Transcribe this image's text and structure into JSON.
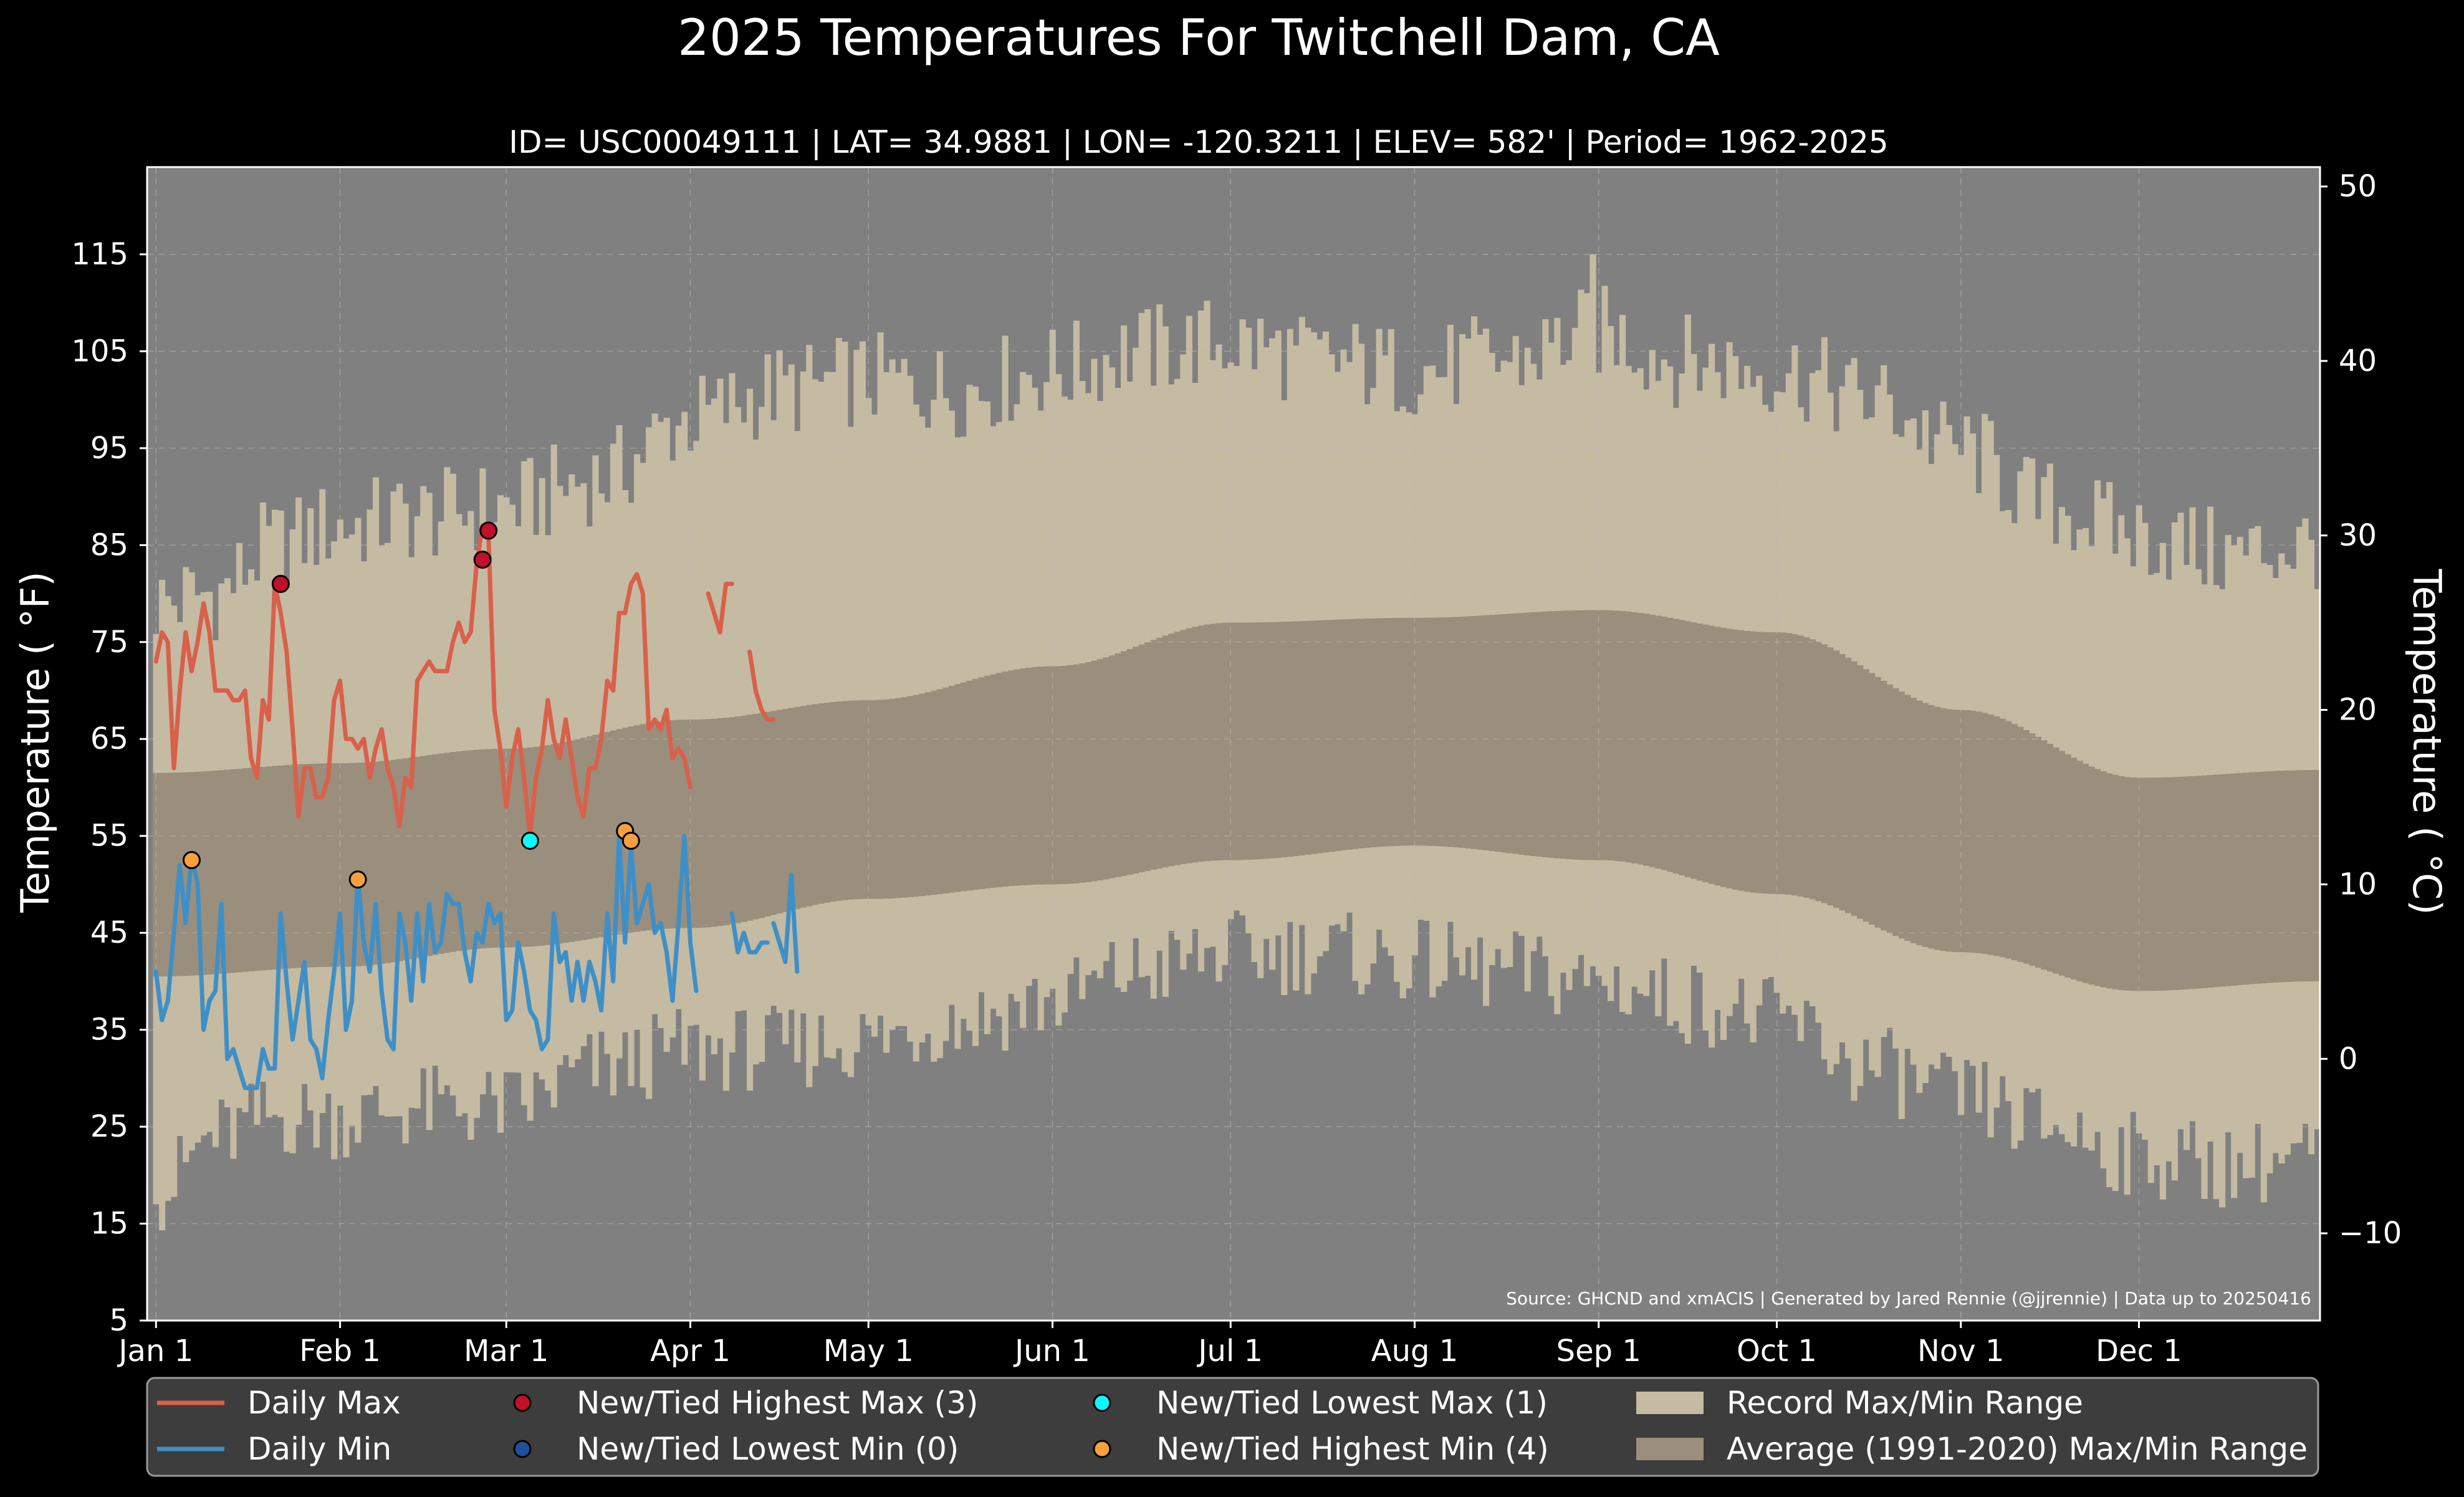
{
  "chart_data": {
    "type": "line",
    "title": "2025 Temperatures For Twitchell Dam, CA",
    "subtitle": "ID= USC00049111 | LAT= 34.9881 | LON= -120.3211 | ELEV= 582' | Period= 1962-2025",
    "ylabel_left": "Temperature ($^\\circ$F)",
    "ylabel_left_text": "Temperature ( °F)",
    "ylabel_right_text": "Temperature ( °C)",
    "source": "Source: GHCND and xmACIS | Generated by Jared Rennie (@jjrennie) | Data up to 20250416",
    "xlim_day": [
      -1.5,
      364.5
    ],
    "ylim_f": [
      5,
      124
    ],
    "grid": true,
    "legend_placement": "bottom",
    "x_ticks": [
      {
        "label": "Jan 1",
        "day": 0
      },
      {
        "label": "Feb 1",
        "day": 31
      },
      {
        "label": "Mar 1",
        "day": 59
      },
      {
        "label": "Apr 1",
        "day": 90
      },
      {
        "label": "May 1",
        "day": 120
      },
      {
        "label": "Jun 1",
        "day": 151
      },
      {
        "label": "Jul 1",
        "day": 181
      },
      {
        "label": "Aug 1",
        "day": 212
      },
      {
        "label": "Sep 1",
        "day": 243
      },
      {
        "label": "Oct 1",
        "day": 273
      },
      {
        "label": "Nov 1",
        "day": 304
      },
      {
        "label": "Dec 1",
        "day": 334
      }
    ],
    "y_ticks_f": [
      5,
      15,
      25,
      35,
      45,
      55,
      65,
      75,
      85,
      95,
      105,
      115
    ],
    "y_ticks_c": [
      -10,
      0,
      10,
      20,
      30,
      40,
      50
    ],
    "colors": {
      "background": "#000000",
      "plot_bg": "#808080",
      "record_range": "#c4bba2",
      "average_range": "#9a8f7c",
      "daily_max": "#d9604b",
      "daily_min": "#3f8fc7",
      "highest_max": "#c0102a",
      "lowest_min": "#1f4f9a",
      "lowest_max": "#00ffff",
      "highest_min": "#f8a040",
      "grid": "#b8b8b8",
      "legend_bg": "#3d3d3d"
    },
    "record_max_anchors": [
      [
        0,
        79
      ],
      [
        10,
        80
      ],
      [
        20,
        85
      ],
      [
        31,
        87
      ],
      [
        45,
        88
      ],
      [
        59,
        89
      ],
      [
        75,
        92
      ],
      [
        90,
        98
      ],
      [
        105,
        101
      ],
      [
        120,
        102
      ],
      [
        135,
        101
      ],
      [
        151,
        103
      ],
      [
        165,
        105
      ],
      [
        181,
        106
      ],
      [
        196,
        104
      ],
      [
        212,
        103
      ],
      [
        227,
        104
      ],
      [
        243,
        107
      ],
      [
        258,
        104
      ],
      [
        273,
        103
      ],
      [
        289,
        100
      ],
      [
        304,
        95
      ],
      [
        319,
        89
      ],
      [
        334,
        86
      ],
      [
        349,
        84
      ],
      [
        364,
        85
      ]
    ],
    "record_min_anchors": [
      [
        0,
        18
      ],
      [
        10,
        24
      ],
      [
        20,
        26
      ],
      [
        31,
        26
      ],
      [
        45,
        27
      ],
      [
        59,
        27
      ],
      [
        75,
        31
      ],
      [
        90,
        33
      ],
      [
        105,
        33
      ],
      [
        120,
        34
      ],
      [
        135,
        36
      ],
      [
        151,
        38
      ],
      [
        165,
        41
      ],
      [
        181,
        43
      ],
      [
        196,
        43
      ],
      [
        212,
        42
      ],
      [
        227,
        41
      ],
      [
        243,
        40
      ],
      [
        258,
        38
      ],
      [
        273,
        36
      ],
      [
        289,
        31
      ],
      [
        304,
        28
      ],
      [
        319,
        25
      ],
      [
        334,
        22
      ],
      [
        349,
        21
      ],
      [
        364,
        22
      ]
    ],
    "avg_max_anchors": [
      [
        0,
        61.5
      ],
      [
        31,
        62.5
      ],
      [
        59,
        64
      ],
      [
        90,
        67
      ],
      [
        120,
        69
      ],
      [
        151,
        72.5
      ],
      [
        181,
        77
      ],
      [
        212,
        77.5
      ],
      [
        243,
        78.3
      ],
      [
        273,
        76
      ],
      [
        304,
        68
      ],
      [
        334,
        61
      ],
      [
        364,
        61.8
      ]
    ],
    "avg_min_anchors": [
      [
        0,
        40.5
      ],
      [
        31,
        41.5
      ],
      [
        59,
        43.5
      ],
      [
        90,
        45.5
      ],
      [
        120,
        48.5
      ],
      [
        151,
        50
      ],
      [
        181,
        52.5
      ],
      [
        212,
        54
      ],
      [
        243,
        52.5
      ],
      [
        273,
        49
      ],
      [
        304,
        43
      ],
      [
        334,
        39
      ],
      [
        364,
        40
      ]
    ],
    "daily_max_segments": [
      [
        [
          0,
          73
        ],
        [
          1,
          76
        ],
        [
          2,
          75
        ],
        [
          3,
          62
        ],
        [
          4,
          70
        ],
        [
          5,
          76
        ],
        [
          6,
          72
        ],
        [
          7,
          75
        ],
        [
          8,
          79
        ],
        [
          9,
          76
        ],
        [
          10,
          70
        ],
        [
          11,
          70
        ],
        [
          12,
          70
        ],
        [
          13,
          69
        ],
        [
          14,
          69
        ],
        [
          15,
          70
        ],
        [
          16,
          63
        ],
        [
          17,
          61
        ],
        [
          18,
          69
        ],
        [
          19,
          67
        ],
        [
          20,
          81
        ],
        [
          21,
          78
        ],
        [
          22,
          74
        ],
        [
          23,
          66
        ],
        [
          24,
          57
        ],
        [
          25,
          62
        ],
        [
          26,
          62
        ],
        [
          27,
          59
        ],
        [
          28,
          59
        ],
        [
          29,
          61
        ],
        [
          30,
          69
        ],
        [
          31,
          71
        ],
        [
          32,
          65
        ],
        [
          33,
          65
        ],
        [
          34,
          64
        ],
        [
          35,
          65
        ],
        [
          36,
          61
        ],
        [
          37,
          64
        ],
        [
          38,
          66
        ],
        [
          39,
          62
        ],
        [
          40,
          60
        ],
        [
          41,
          56
        ],
        [
          42,
          61
        ],
        [
          43,
          60
        ],
        [
          44,
          71
        ],
        [
          45,
          72
        ],
        [
          46,
          73
        ],
        [
          47,
          72
        ],
        [
          48,
          72
        ],
        [
          49,
          72
        ],
        [
          50,
          75
        ],
        [
          51,
          77
        ],
        [
          52,
          75
        ],
        [
          53,
          76
        ],
        [
          54,
          83
        ],
        [
          55,
          87
        ],
        [
          56,
          86
        ],
        [
          57,
          68
        ],
        [
          58,
          64
        ],
        [
          59,
          58
        ],
        [
          60,
          63
        ],
        [
          61,
          66
        ],
        [
          62,
          61
        ],
        [
          63,
          55
        ],
        [
          64,
          61
        ],
        [
          65,
          64
        ],
        [
          66,
          69
        ],
        [
          67,
          65
        ],
        [
          68,
          63
        ],
        [
          69,
          67
        ],
        [
          70,
          63
        ],
        [
          71,
          59
        ],
        [
          72,
          57
        ],
        [
          73,
          62
        ],
        [
          74,
          62
        ],
        [
          75,
          65
        ],
        [
          76,
          71
        ],
        [
          77,
          70
        ],
        [
          78,
          78
        ],
        [
          79,
          78
        ],
        [
          80,
          81
        ],
        [
          81,
          82
        ],
        [
          82,
          80
        ],
        [
          83,
          66
        ],
        [
          84,
          67
        ],
        [
          85,
          66
        ],
        [
          86,
          68
        ],
        [
          87,
          63
        ],
        [
          88,
          64
        ],
        [
          89,
          63
        ],
        [
          90,
          60
        ]
      ],
      [
        [
          93,
          80
        ],
        [
          95,
          76
        ],
        [
          96,
          81
        ],
        [
          97,
          81
        ]
      ],
      [
        [
          100,
          74
        ],
        [
          101,
          70
        ],
        [
          102,
          68
        ],
        [
          103,
          67
        ],
        [
          104,
          67
        ]
      ]
    ],
    "daily_min_segments": [
      [
        [
          0,
          41
        ],
        [
          1,
          36
        ],
        [
          2,
          38
        ],
        [
          3,
          45
        ],
        [
          4,
          52
        ],
        [
          5,
          46
        ],
        [
          6,
          53
        ],
        [
          7,
          50
        ],
        [
          8,
          35
        ],
        [
          9,
          38
        ],
        [
          10,
          39
        ],
        [
          11,
          48
        ],
        [
          12,
          32
        ],
        [
          13,
          33
        ],
        [
          14,
          31
        ],
        [
          15,
          29
        ],
        [
          16,
          29
        ],
        [
          17,
          29
        ],
        [
          18,
          33
        ],
        [
          19,
          31
        ],
        [
          20,
          31
        ],
        [
          21,
          47
        ],
        [
          22,
          40
        ],
        [
          23,
          34
        ],
        [
          24,
          38
        ],
        [
          25,
          42
        ],
        [
          26,
          34
        ],
        [
          27,
          33
        ],
        [
          28,
          30
        ],
        [
          29,
          36
        ],
        [
          30,
          41
        ],
        [
          31,
          47
        ],
        [
          32,
          35
        ],
        [
          33,
          38
        ],
        [
          34,
          51
        ],
        [
          35,
          44
        ],
        [
          36,
          41
        ],
        [
          37,
          48
        ],
        [
          38,
          39
        ],
        [
          39,
          34
        ],
        [
          40,
          33
        ],
        [
          41,
          47
        ],
        [
          42,
          44
        ],
        [
          43,
          38
        ],
        [
          44,
          47
        ],
        [
          45,
          40
        ],
        [
          46,
          48
        ],
        [
          47,
          43
        ],
        [
          48,
          44
        ],
        [
          49,
          49
        ],
        [
          50,
          48
        ],
        [
          51,
          48
        ],
        [
          52,
          43
        ],
        [
          53,
          40
        ],
        [
          54,
          45
        ],
        [
          55,
          44
        ],
        [
          56,
          48
        ],
        [
          57,
          46
        ],
        [
          58,
          47
        ],
        [
          59,
          36
        ],
        [
          60,
          37
        ],
        [
          61,
          44
        ],
        [
          62,
          41
        ],
        [
          63,
          37
        ],
        [
          64,
          36
        ],
        [
          65,
          33
        ],
        [
          66,
          34
        ],
        [
          67,
          47
        ],
        [
          68,
          42
        ],
        [
          69,
          43
        ],
        [
          70,
          38
        ],
        [
          71,
          42
        ],
        [
          72,
          38
        ],
        [
          73,
          42
        ],
        [
          74,
          40
        ],
        [
          75,
          37
        ],
        [
          76,
          47
        ],
        [
          77,
          40
        ],
        [
          78,
          55
        ],
        [
          79,
          44
        ],
        [
          80,
          54
        ],
        [
          81,
          46
        ],
        [
          82,
          48
        ],
        [
          83,
          50
        ],
        [
          84,
          45
        ],
        [
          85,
          46
        ],
        [
          86,
          43
        ],
        [
          87,
          38
        ],
        [
          88,
          46
        ],
        [
          89,
          55
        ],
        [
          90,
          44
        ],
        [
          91,
          39
        ]
      ],
      [
        [
          97,
          47
        ],
        [
          98,
          43
        ],
        [
          99,
          45
        ],
        [
          100,
          43
        ],
        [
          101,
          43
        ],
        [
          102,
          44
        ],
        [
          103,
          44
        ]
      ],
      [
        [
          104,
          46
        ],
        [
          105,
          44
        ],
        [
          106,
          42
        ],
        [
          107,
          51
        ],
        [
          108,
          41
        ]
      ]
    ],
    "highest_max_points": [
      [
        21,
        81
      ],
      [
        55,
        83.5
      ],
      [
        56,
        86.5
      ]
    ],
    "lowest_min_points": [],
    "lowest_max_points": [
      [
        63,
        54.5
      ]
    ],
    "highest_min_points": [
      [
        6,
        52.5
      ],
      [
        34,
        50.5
      ],
      [
        79,
        55.5
      ],
      [
        80,
        54.5
      ]
    ],
    "legend": [
      {
        "key": "daily_max",
        "label": "Daily Max",
        "kind": "line"
      },
      {
        "key": "daily_min",
        "label": "Daily Min",
        "kind": "line"
      },
      {
        "key": "highest_max",
        "label": "New/Tied Highest Max (3)",
        "kind": "marker"
      },
      {
        "key": "lowest_min",
        "label": "New/Tied Lowest Min (0)",
        "kind": "marker"
      },
      {
        "key": "lowest_max",
        "label": "New/Tied Lowest Max (1)",
        "kind": "marker"
      },
      {
        "key": "highest_min",
        "label": "New/Tied Highest Min (4)",
        "kind": "marker"
      },
      {
        "key": "record_range",
        "label": "Record Max/Min Range",
        "kind": "patch"
      },
      {
        "key": "average_range",
        "label": "Average (1991-2020) Max/Min Range",
        "kind": "patch"
      }
    ]
  }
}
